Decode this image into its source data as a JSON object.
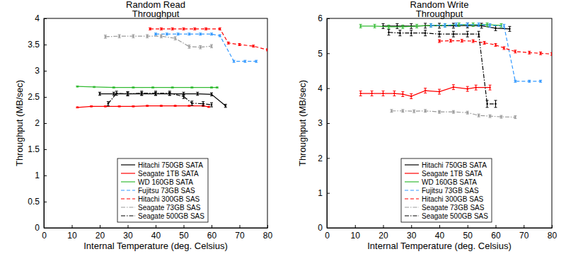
{
  "chart_data": [
    {
      "type": "line",
      "title": "Random Read\nThroughput",
      "x_label": "Internal Temperature (deg. Celsius)",
      "y_label": "Throughput (MB/sec)",
      "xlim": [
        0,
        80
      ],
      "xticks": [
        0,
        10,
        20,
        30,
        40,
        50,
        60,
        70,
        80
      ],
      "ylim": [
        0,
        4
      ],
      "yticks": [
        0,
        0.5,
        1,
        1.5,
        2,
        2.5,
        3,
        3.5,
        4
      ],
      "grid": false,
      "legend": "lower center",
      "series": [
        {
          "name": "Hitachi 750GB SATA",
          "color": "#000000",
          "line_style": "solid",
          "marker": "dot",
          "x": [
            20,
            25,
            30,
            35,
            40,
            45,
            50,
            55,
            60,
            65
          ],
          "values": [
            2.56,
            2.56,
            2.56,
            2.56,
            2.56,
            2.56,
            2.56,
            2.56,
            2.55,
            2.33
          ],
          "errors": [
            0.03,
            0.03,
            0.03,
            0.03,
            0.03,
            0.03,
            0.03,
            0.03,
            0.03,
            0.03
          ]
        },
        {
          "name": "Seagate 1TB SATA",
          "color": "#ff0000",
          "line_style": "solid",
          "marker": "dot",
          "x": [
            12,
            17,
            22,
            27,
            32,
            37,
            42,
            47,
            52,
            57,
            59
          ],
          "values": [
            2.3,
            2.32,
            2.32,
            2.32,
            2.32,
            2.33,
            2.33,
            2.33,
            2.33,
            2.33,
            2.31
          ],
          "errors": [
            0.01,
            0.01,
            0.01,
            0.01,
            0.01,
            0.01,
            0.01,
            0.01,
            0.01,
            0.01,
            0.01
          ]
        },
        {
          "name": "WD 160GB SATA",
          "color": "#33bb33",
          "line_style": "solid",
          "marker": "dot",
          "x": [
            12,
            18,
            25,
            32,
            39,
            46,
            53,
            60,
            62
          ],
          "values": [
            2.7,
            2.69,
            2.68,
            2.68,
            2.68,
            2.68,
            2.68,
            2.68,
            2.68
          ],
          "errors": [
            0.01,
            0.01,
            0.01,
            0.01,
            0.01,
            0.01,
            0.01,
            0.01,
            0.01
          ]
        },
        {
          "name": "Fujitsu 73GB SAS",
          "color": "#3399ff",
          "line_style": "dashed",
          "marker": "dot",
          "x": [
            40,
            44,
            48,
            52,
            56,
            60,
            63,
            68,
            72,
            76
          ],
          "values": [
            3.7,
            3.7,
            3.7,
            3.7,
            3.7,
            3.7,
            3.67,
            3.18,
            3.18,
            3.18
          ],
          "errors": [
            0.02,
            0.02,
            0.02,
            0.02,
            0.02,
            0.02,
            0.02,
            0.02,
            0.02,
            0.02
          ]
        },
        {
          "name": "Hitachi 300GB SAS",
          "color": "#ff0000",
          "line_style": "dashed",
          "marker": "dot",
          "x": [
            38,
            42,
            46,
            50,
            54,
            58,
            63,
            66,
            70,
            75,
            80
          ],
          "values": [
            3.8,
            3.8,
            3.8,
            3.8,
            3.8,
            3.8,
            3.8,
            3.53,
            3.5,
            3.47,
            3.4
          ],
          "errors": [
            0.02,
            0.02,
            0.02,
            0.02,
            0.02,
            0.02,
            0.02,
            0.02,
            0.02,
            0.02,
            0.02
          ]
        },
        {
          "name": "Seagate 73GB SAS",
          "color": "#999999",
          "line_style": "dashdot",
          "marker": "dot",
          "x": [
            22,
            27,
            32,
            37,
            42,
            47,
            52,
            56,
            60
          ],
          "values": [
            3.65,
            3.66,
            3.66,
            3.66,
            3.66,
            3.62,
            3.46,
            3.45,
            3.47
          ],
          "errors": [
            0.03,
            0.03,
            0.03,
            0.03,
            0.03,
            0.03,
            0.03,
            0.03,
            0.03
          ]
        },
        {
          "name": "Seagate 500GB SAS",
          "color": "#000000",
          "line_style": "dashdot",
          "marker": "dot",
          "x": [
            23,
            26,
            30,
            35,
            40,
            45,
            50,
            53,
            57,
            60
          ],
          "values": [
            2.37,
            2.57,
            2.56,
            2.57,
            2.57,
            2.57,
            2.51,
            2.38,
            2.37,
            2.35
          ],
          "errors": [
            0.04,
            0.04,
            0.04,
            0.04,
            0.04,
            0.04,
            0.04,
            0.04,
            0.04,
            0.04
          ]
        }
      ]
    },
    {
      "type": "line",
      "title": "Random Write\nThroughput",
      "x_label": "Internal Temperature (deg. Celsius)",
      "y_label": "Throughput (MB/sec)",
      "xlim": [
        0,
        80
      ],
      "xticks": [
        0,
        10,
        20,
        30,
        40,
        50,
        60,
        70,
        80
      ],
      "ylim": [
        0,
        6
      ],
      "yticks": [
        0,
        1,
        2,
        3,
        4,
        5,
        6
      ],
      "grid": false,
      "legend": "lower center",
      "series": [
        {
          "name": "Hitachi 750GB SATA",
          "color": "#000000",
          "line_style": "solid",
          "marker": "dot",
          "x": [
            20,
            25,
            30,
            35,
            40,
            45,
            50,
            55,
            60,
            65
          ],
          "values": [
            5.78,
            5.78,
            5.78,
            5.79,
            5.79,
            5.79,
            5.8,
            5.79,
            5.72,
            5.7
          ],
          "errors": [
            0.07,
            0.07,
            0.07,
            0.07,
            0.07,
            0.07,
            0.07,
            0.07,
            0.07,
            0.07
          ]
        },
        {
          "name": "Seagate 1TB SATA",
          "color": "#ff0000",
          "line_style": "solid",
          "marker": "dot",
          "x": [
            12,
            16,
            20,
            24,
            27,
            30,
            35,
            40,
            45,
            50,
            53,
            58
          ],
          "values": [
            3.85,
            3.85,
            3.85,
            3.85,
            3.83,
            3.77,
            3.93,
            3.9,
            4.03,
            3.98,
            4.02,
            4.02
          ],
          "errors": [
            0.07,
            0.07,
            0.07,
            0.07,
            0.07,
            0.07,
            0.07,
            0.07,
            0.07,
            0.07,
            0.07,
            0.07
          ]
        },
        {
          "name": "WD 160GB SATA",
          "color": "#33bb33",
          "line_style": "solid",
          "marker": "dot",
          "x": [
            12,
            17,
            22,
            27,
            32,
            37,
            42,
            47,
            52,
            57,
            62
          ],
          "values": [
            5.78,
            5.78,
            5.76,
            5.76,
            5.78,
            5.8,
            5.8,
            5.82,
            5.82,
            5.82,
            5.8
          ],
          "errors": [
            0.05,
            0.05,
            0.05,
            0.05,
            0.05,
            0.05,
            0.05,
            0.05,
            0.05,
            0.05,
            0.05
          ]
        },
        {
          "name": "Fujitsu 73GB SAS",
          "color": "#3399ff",
          "line_style": "dashed",
          "marker": "dot",
          "x": [
            37,
            42,
            46,
            50,
            54,
            58,
            63,
            67,
            72,
            76
          ],
          "values": [
            5.8,
            5.8,
            5.82,
            5.82,
            5.82,
            5.8,
            5.78,
            4.2,
            4.2,
            4.2
          ],
          "errors": [
            0.05,
            0.05,
            0.05,
            0.05,
            0.05,
            0.05,
            0.05,
            0.03,
            0.03,
            0.03
          ]
        },
        {
          "name": "Hitachi 300GB SAS",
          "color": "#ff0000",
          "line_style": "dashed",
          "marker": "dot",
          "x": [
            40,
            44,
            48,
            52,
            56,
            60,
            63,
            67,
            72,
            76,
            80
          ],
          "values": [
            5.35,
            5.36,
            5.36,
            5.35,
            5.3,
            5.24,
            5.15,
            5.05,
            5.02,
            5.0,
            4.98
          ],
          "errors": [
            0.04,
            0.04,
            0.04,
            0.04,
            0.04,
            0.04,
            0.04,
            0.04,
            0.04,
            0.04,
            0.04
          ]
        },
        {
          "name": "Seagate 73GB SAS",
          "color": "#999999",
          "line_style": "dashdot",
          "marker": "dot",
          "x": [
            23,
            27,
            31,
            35,
            40,
            45,
            50,
            54,
            58,
            62,
            67
          ],
          "values": [
            3.35,
            3.35,
            3.34,
            3.35,
            3.32,
            3.32,
            3.3,
            3.22,
            3.2,
            3.18,
            3.17
          ],
          "errors": [
            0.04,
            0.04,
            0.04,
            0.04,
            0.04,
            0.04,
            0.04,
            0.04,
            0.04,
            0.04,
            0.04
          ]
        },
        {
          "name": "Seagate 500GB SAS",
          "color": "#000000",
          "line_style": "dashdot",
          "marker": "dot",
          "x": [
            22,
            26,
            30,
            35,
            40,
            45,
            50,
            54,
            57,
            60
          ],
          "values": [
            5.6,
            5.58,
            5.58,
            5.58,
            5.55,
            5.55,
            5.55,
            5.55,
            3.55,
            3.55
          ],
          "errors": [
            0.08,
            0.08,
            0.08,
            0.08,
            0.08,
            0.08,
            0.08,
            0.08,
            0.1,
            0.1
          ]
        }
      ]
    }
  ]
}
